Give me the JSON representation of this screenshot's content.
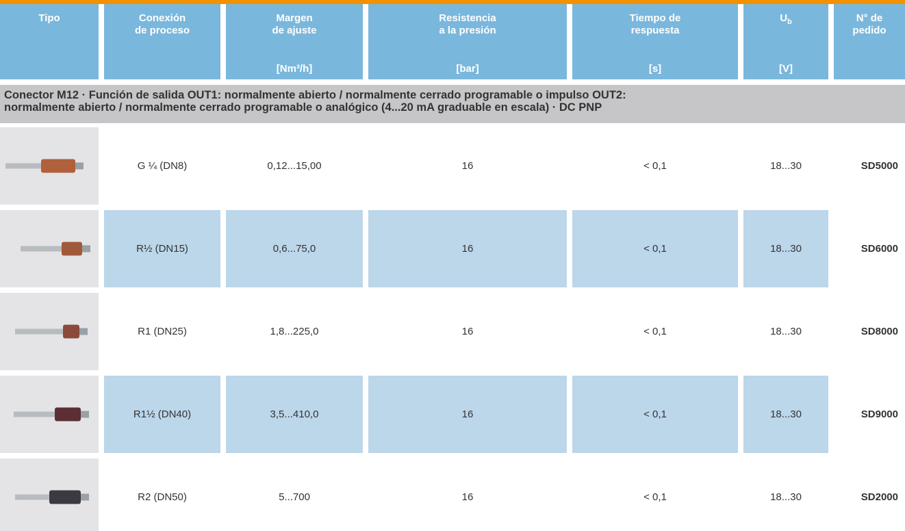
{
  "header": {
    "columns": [
      {
        "lines": [
          "Tipo"
        ]
      },
      {
        "lines": [
          "Conexión",
          "de proceso"
        ]
      },
      {
        "lines": [
          "Margen",
          "de ajuste"
        ],
        "unit": "[Nm³/h]"
      },
      {
        "lines": [
          "Resistencia",
          "a la presión"
        ],
        "unit": "[bar]"
      },
      {
        "lines": [
          "Tiempo de",
          "respuesta"
        ],
        "unit": "[s]"
      },
      {
        "lines": [
          "U"
        ],
        "sub": "b",
        "unit": "[V]"
      },
      {
        "lines": [
          "N° de",
          "pedido"
        ]
      }
    ]
  },
  "section": {
    "lines": [
      "Conector M12 · Función de salida OUT1: normalmente abierto / normalmente cerrado programable o impulso OUT2:",
      "normalmente abierto / normalmente cerrado programable o analógico (4...20 mA graduable en escala) · DC PNP"
    ]
  },
  "rows": [
    [
      "G ¼ (DN8)",
      "0,12...15,00",
      "16",
      "< 0,1",
      "18...30",
      "SD5000"
    ],
    [
      "R½ (DN15)",
      "0,6...75,0",
      "16",
      "< 0,1",
      "18...30",
      "SD6000"
    ],
    [
      "R1 (DN25)",
      "1,8...225,0",
      "16",
      "< 0,1",
      "18...30",
      "SD8000"
    ],
    [
      "R1½ (DN40)",
      "3,5...410,0",
      "16",
      "< 0,1",
      "18...30",
      "SD9000"
    ],
    [
      "R2 (DN50)",
      "5...700",
      "16",
      "< 0,1",
      "18...30",
      "SD2000"
    ]
  ]
}
